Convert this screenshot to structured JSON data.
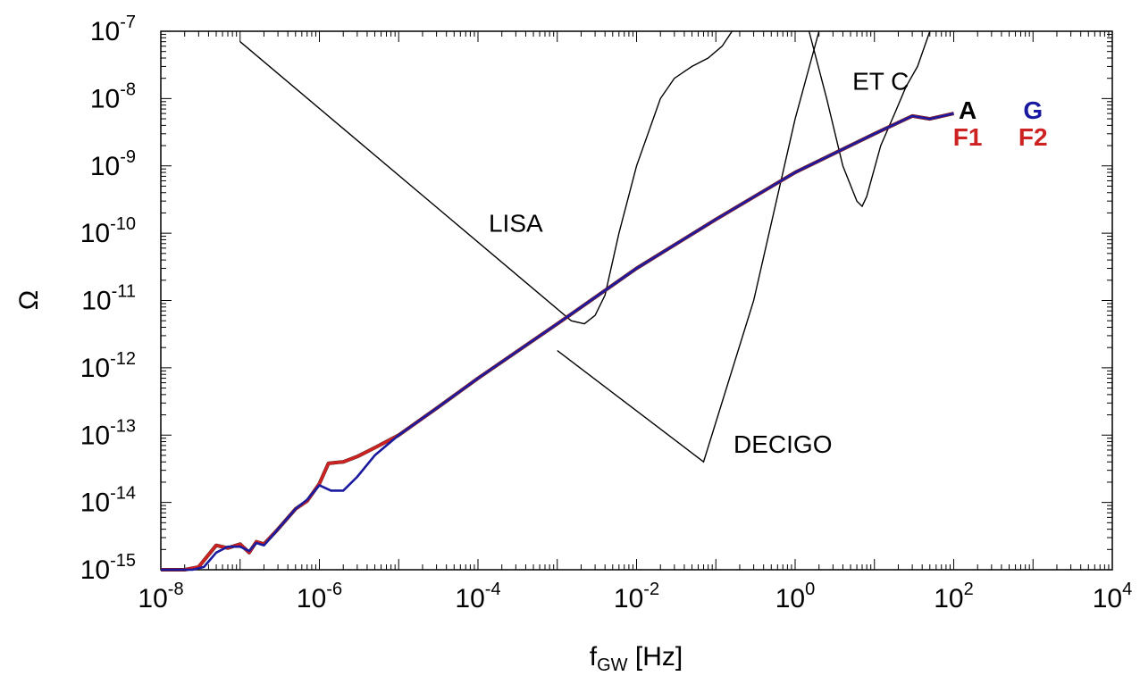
{
  "chart_data": {
    "type": "line",
    "x_scale": "log",
    "y_scale": "log",
    "xlim": [
      1e-08,
      10000.0
    ],
    "ylim": [
      1e-15,
      1e-07
    ],
    "xlabel": {
      "main": "f",
      "sub": "GW",
      "unit": "[Hz]"
    },
    "ylabel": "Ω",
    "x_ticks": [
      {
        "base": "10",
        "exp": "-8",
        "value": 1e-08
      },
      {
        "base": "10",
        "exp": "-6",
        "value": 1e-06
      },
      {
        "base": "10",
        "exp": "-4",
        "value": 0.0001
      },
      {
        "base": "10",
        "exp": "-2",
        "value": 0.01
      },
      {
        "base": "10",
        "exp": "0",
        "value": 1
      },
      {
        "base": "10",
        "exp": "2",
        "value": 100
      },
      {
        "base": "10",
        "exp": "4",
        "value": 10000
      }
    ],
    "y_ticks": [
      {
        "base": "10",
        "exp": "-7",
        "value": 1e-07
      },
      {
        "base": "10",
        "exp": "-8",
        "value": 1e-08
      },
      {
        "base": "10",
        "exp": "-9",
        "value": 1e-09
      },
      {
        "base": "10",
        "exp": "-10",
        "value": 1e-10
      },
      {
        "base": "10",
        "exp": "-11",
        "value": 1e-11
      },
      {
        "base": "10",
        "exp": "-12",
        "value": 1e-12
      },
      {
        "base": "10",
        "exp": "-13",
        "value": 1e-13
      },
      {
        "base": "10",
        "exp": "-14",
        "value": 1e-14
      },
      {
        "base": "10",
        "exp": "-15",
        "value": 1e-15
      }
    ],
    "series": [
      {
        "name": "A",
        "color": "#000000",
        "x": [
          1e-08,
          2e-08,
          3e-08,
          5e-08,
          7e-08,
          1e-07,
          1.3e-07,
          1.6e-07,
          2e-07,
          3e-07,
          5e-07,
          7e-07,
          1e-06,
          1.3e-06,
          2e-06,
          3e-06,
          5e-06,
          1e-05,
          3e-05,
          0.0001,
          0.001,
          0.01,
          0.1,
          1,
          10,
          30,
          50,
          100
        ],
        "y": [
          1e-15,
          1e-15,
          1.1e-15,
          2.3e-15,
          2.1e-15,
          2.4e-15,
          1.8e-15,
          2.6e-15,
          2.4e-15,
          4e-15,
          8e-15,
          1.05e-14,
          1.9e-14,
          3.8e-14,
          4e-14,
          4.8e-14,
          6.5e-14,
          1e-13,
          2.5e-13,
          7e-13,
          4.5e-12,
          3e-11,
          1.6e-10,
          8e-10,
          3e-09,
          5.5e-09,
          5e-09,
          6e-09
        ]
      },
      {
        "name": "F1",
        "color": "#cc2222",
        "x": [
          1e-08,
          2e-08,
          3e-08,
          5e-08,
          7e-08,
          1e-07,
          1.3e-07,
          1.6e-07,
          2e-07,
          3e-07,
          5e-07,
          7e-07,
          1e-06,
          1.3e-06,
          2e-06,
          3e-06,
          5e-06,
          1e-05,
          3e-05,
          0.0001,
          0.001,
          0.01,
          0.1,
          1,
          10,
          30,
          50,
          100
        ],
        "y": [
          1e-15,
          1e-15,
          1.1e-15,
          2.3e-15,
          2.1e-15,
          2.4e-15,
          1.8e-15,
          2.6e-15,
          2.4e-15,
          4e-15,
          8e-15,
          1.05e-14,
          1.9e-14,
          3.8e-14,
          4e-14,
          4.8e-14,
          6.5e-14,
          1e-13,
          2.5e-13,
          7e-13,
          4.5e-12,
          3e-11,
          1.6e-10,
          8e-10,
          3e-09,
          5.5e-09,
          5e-09,
          6e-09
        ]
      },
      {
        "name": "F2",
        "color": "#cc2222",
        "x": [
          1e-08,
          2e-08,
          3e-08,
          5e-08,
          7e-08,
          1e-07,
          1.3e-07,
          1.6e-07,
          2e-07,
          3e-07,
          5e-07,
          7e-07,
          1e-06,
          1.3e-06,
          2e-06,
          3e-06,
          5e-06,
          1e-05,
          3e-05,
          0.0001,
          0.001,
          0.01,
          0.1,
          1,
          10,
          30,
          50,
          100
        ],
        "y": [
          1e-15,
          1e-15,
          1.1e-15,
          2.3e-15,
          2.1e-15,
          2.4e-15,
          1.8e-15,
          2.6e-15,
          2.4e-15,
          4e-15,
          8e-15,
          1.05e-14,
          1.9e-14,
          3.8e-14,
          4e-14,
          4.8e-14,
          6.5e-14,
          1e-13,
          2.5e-13,
          7e-13,
          4.5e-12,
          3e-11,
          1.6e-10,
          8e-10,
          3e-09,
          5.5e-09,
          5e-09,
          6e-09
        ]
      },
      {
        "name": "G",
        "color": "#1a1aa0",
        "x": [
          1e-08,
          2.5e-08,
          3.5e-08,
          5e-08,
          7e-08,
          1e-07,
          1.3e-07,
          1.6e-07,
          2e-07,
          3e-07,
          5e-07,
          7e-07,
          1e-06,
          1.4e-06,
          2e-06,
          3e-06,
          5e-06,
          1e-05,
          3e-05,
          0.0001,
          0.001,
          0.01,
          0.1,
          1,
          10,
          30,
          50,
          100
        ],
        "y": [
          1e-15,
          1e-15,
          1.1e-15,
          1.8e-15,
          2.2e-15,
          2.2e-15,
          1.9e-15,
          2.5e-15,
          2.3e-15,
          4e-15,
          8e-15,
          1.1e-14,
          1.8e-14,
          1.5e-14,
          1.5e-14,
          2.4e-14,
          5e-14,
          1e-13,
          2.5e-13,
          7e-13,
          4.5e-12,
          3e-11,
          1.6e-10,
          8e-10,
          3e-09,
          5.5e-09,
          5e-09,
          6e-09
        ]
      }
    ],
    "sensitivity_curves": [
      {
        "name": "LISA",
        "color": "#000000",
        "x": [
          1e-07,
          0.0015,
          0.0022,
          0.003,
          0.004,
          0.006,
          0.01,
          0.02,
          0.03,
          0.05,
          0.08,
          0.12,
          0.16
        ],
        "y": [
          7e-08,
          5e-12,
          4.5e-12,
          6e-12,
          1.2e-11,
          1e-10,
          1e-09,
          1e-08,
          2e-08,
          3e-08,
          4e-08,
          6e-08,
          1e-07
        ]
      },
      {
        "name": "DECIGO",
        "color": "#000000",
        "x": [
          0.001,
          0.07,
          0.3,
          1,
          2
        ],
        "y": [
          1.8e-12,
          4e-14,
          1e-11,
          5e-09,
          1e-07
        ]
      },
      {
        "name": "ET C",
        "color": "#000000",
        "x": [
          1.5,
          2.5,
          4,
          6,
          7,
          8,
          12,
          18,
          25,
          35,
          50
        ],
        "y": [
          1e-07,
          1e-08,
          1e-09,
          3e-10,
          2.5e-10,
          3.5e-10,
          2e-09,
          6e-09,
          1.5e-08,
          3e-08,
          1e-07
        ]
      }
    ],
    "annotations": [
      {
        "text": "LISA",
        "x": 0.0003,
        "y": 1.05e-10
      },
      {
        "text": "DECIGO",
        "x": 0.7,
        "y": 5.5e-14
      },
      {
        "text": "ET C",
        "x": 12,
        "y": 1.35e-08
      },
      {
        "text": "A",
        "x": 150,
        "y": 5e-09
      },
      {
        "text": "G",
        "x": 1000,
        "y": 5e-09
      },
      {
        "text": "F1",
        "x": 150,
        "y": 2e-09
      },
      {
        "text": "F2",
        "x": 1000,
        "y": 2e-09
      }
    ]
  }
}
